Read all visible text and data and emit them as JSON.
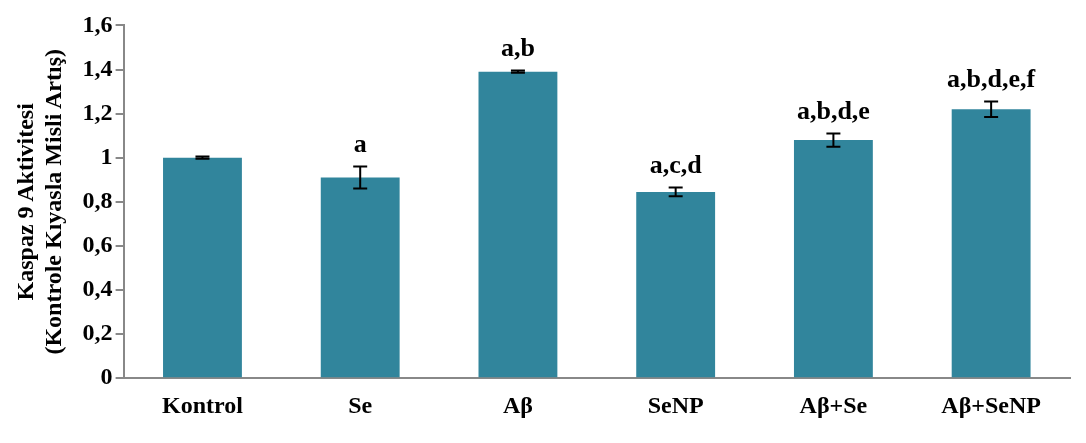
{
  "chart_data": {
    "type": "bar",
    "ylabel": "Kaspaz 9 Aktivitesi\n(Kontrole Kıyasla Misli Artış)",
    "categories": [
      "Kontrol",
      "Se",
      "Aβ",
      "SeNP",
      "Aβ+Se",
      "Aβ+SeNP"
    ],
    "values": [
      1.0,
      0.91,
      1.39,
      0.845,
      1.08,
      1.22
    ],
    "errors": [
      0.005,
      0.05,
      0.005,
      0.02,
      0.03,
      0.035
    ],
    "color": "#31859c",
    "ylim": [
      0,
      1.6
    ],
    "yticks": [
      0,
      {
        "value": 0.2,
        "label": "0,2"
      },
      {
        "value": 0.4,
        "label": "0,4"
      },
      {
        "value": 0.6,
        "label": "0,6"
      },
      {
        "value": 0.8,
        "label": "0,8"
      },
      1,
      {
        "value": 1.2,
        "label": "1,2"
      },
      {
        "value": 1.4,
        "label": "1,4"
      },
      {
        "value": 1.6,
        "label": "1,6"
      }
    ],
    "grid": false,
    "legend": false,
    "annotations": [
      {
        "text": "a",
        "x": "Se",
        "y": 0.96
      },
      {
        "text": "a,b",
        "x": "Aβ",
        "y": 1.395
      },
      {
        "text": "a,c,d",
        "x": "SeNP",
        "y": 0.865
      },
      {
        "text": "a,b,d,e",
        "x": "Aβ+Se",
        "y": 1.11
      },
      {
        "text": "a,b,d,e,f",
        "x": "Aβ+SeNP",
        "y": 1.255
      }
    ]
  }
}
